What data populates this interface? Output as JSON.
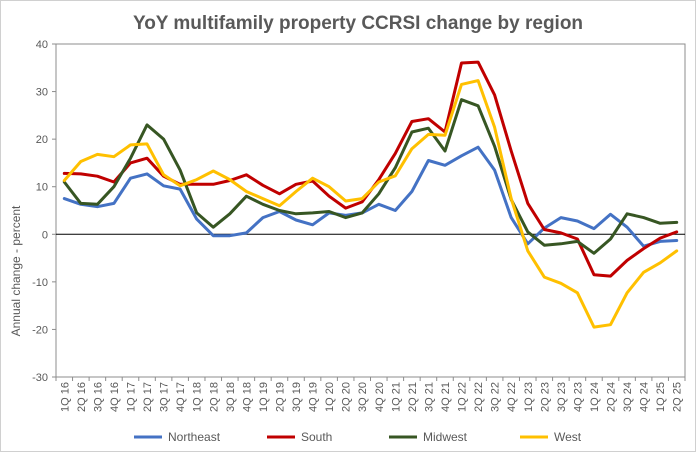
{
  "chart_data": {
    "type": "line",
    "title": "YoY multifamily  property CCRSI change by region",
    "xlabel": "",
    "ylabel": "Annual change - percent",
    "ylim": [
      -30,
      40
    ],
    "yticks": [
      -30,
      -20,
      -10,
      0,
      10,
      20,
      30,
      40
    ],
    "grid": false,
    "legend_position": "bottom",
    "categories": [
      "1Q 16",
      "2Q 16",
      "3Q 16",
      "4Q 16",
      "1Q 17",
      "2Q 17",
      "3Q 17",
      "4Q 17",
      "1Q 18",
      "2Q 18",
      "3Q 18",
      "4Q 18",
      "1Q 19",
      "2Q 19",
      "3Q 19",
      "4Q 19",
      "1Q 20",
      "2Q 20",
      "3Q 20",
      "4Q 20",
      "1Q 21",
      "2Q 21",
      "3Q 21",
      "4Q 21",
      "1Q 22",
      "2Q 22",
      "3Q 22",
      "4Q 22",
      "1Q 23",
      "2Q 23",
      "3Q 23",
      "4Q 23",
      "1Q 24",
      "2Q 24",
      "3Q 24",
      "4Q 24",
      "1Q 25",
      "2Q 25"
    ],
    "series": [
      {
        "name": "Northeast",
        "color": "#4472c4",
        "values": [
          7.5,
          6.3,
          5.8,
          6.5,
          11.8,
          12.7,
          10.2,
          9.5,
          3.2,
          -0.3,
          -0.3,
          0.3,
          3.5,
          4.8,
          3.0,
          2.0,
          4.5,
          4.0,
          4.5,
          6.3,
          5.0,
          9.0,
          15.5,
          14.5,
          16.5,
          18.3,
          13.5,
          3.5,
          -2.0,
          1.3,
          3.5,
          2.8,
          1.2,
          4.2,
          1.5,
          -2.5,
          -1.5,
          -1.3
        ]
      },
      {
        "name": "South",
        "color": "#c00000",
        "values": [
          12.8,
          12.7,
          12.2,
          11.0,
          15.0,
          16.0,
          12.2,
          10.5,
          10.5,
          10.5,
          11.3,
          12.5,
          10.3,
          8.5,
          10.5,
          11.2,
          8.0,
          5.5,
          6.8,
          11.5,
          17.0,
          23.7,
          24.3,
          21.5,
          36.0,
          36.2,
          29.3,
          17.5,
          6.5,
          1.0,
          0.3,
          -1.0,
          -8.5,
          -8.8,
          -5.5,
          -3.0,
          -0.8,
          0.5
        ]
      },
      {
        "name": "Midwest",
        "color": "#375623",
        "values": [
          11.0,
          6.5,
          6.3,
          10.0,
          16.0,
          23.0,
          20.0,
          13.5,
          4.5,
          1.5,
          4.3,
          8.0,
          6.3,
          5.0,
          4.3,
          4.5,
          4.8,
          3.5,
          4.5,
          8.5,
          14.0,
          21.5,
          22.3,
          17.5,
          28.3,
          27.0,
          18.5,
          7.3,
          0.5,
          -2.3,
          -2.0,
          -1.5,
          -4.0,
          -1.0,
          4.3,
          3.5,
          2.3,
          2.5
        ]
      },
      {
        "name": "West",
        "color": "#ffc000",
        "values": [
          11.3,
          15.3,
          16.8,
          16.3,
          18.8,
          19.0,
          12.5,
          10.2,
          11.5,
          13.3,
          11.5,
          9.0,
          7.5,
          6.0,
          9.0,
          11.8,
          10.0,
          7.0,
          7.5,
          11.0,
          12.3,
          18.0,
          21.0,
          20.8,
          31.5,
          32.3,
          22.5,
          7.5,
          -3.5,
          -9.0,
          -10.3,
          -12.3,
          -19.5,
          -19.0,
          -12.3,
          -8.0,
          -6.0,
          -3.5
        ]
      }
    ]
  }
}
